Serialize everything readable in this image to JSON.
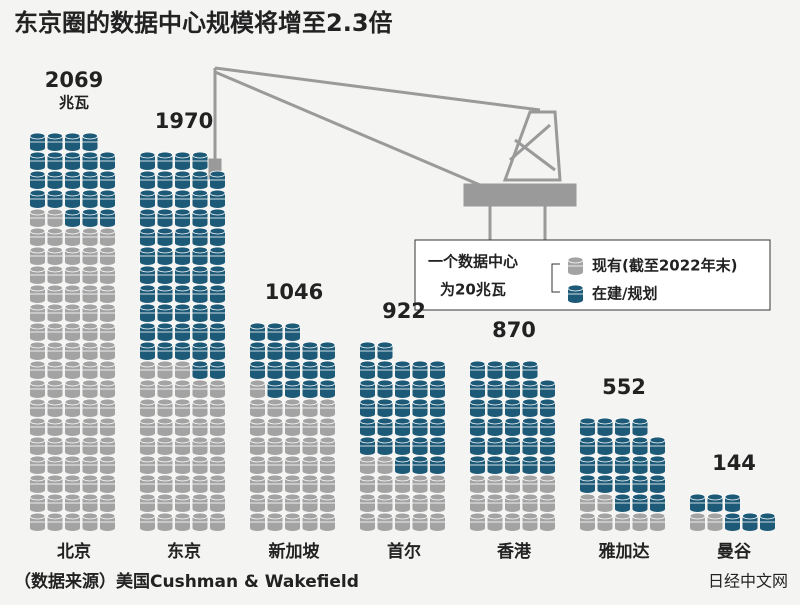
{
  "chart_data": {
    "type": "pictograph",
    "title": "东京圈的数据中心规模将增至2.3倍",
    "categories": [
      "北京",
      "东京",
      "新加坡",
      "首尔",
      "香港",
      "雅加达",
      "曼谷"
    ],
    "totals": [
      2069,
      1970,
      1046,
      922,
      870,
      552,
      144
    ],
    "unit": "兆瓦",
    "icon_value": 20,
    "series": [
      {
        "name": "现有(截至2022年末)",
        "color": "#a3a3a3",
        "values": [
          1629,
          860,
          716,
          322,
          300,
          127,
          40
        ]
      },
      {
        "name": "在建/规划",
        "color": "#1d5a78",
        "values": [
          440,
          1110,
          330,
          600,
          570,
          425,
          104
        ]
      }
    ],
    "legend_note": [
      "一个数据中心",
      "为20兆瓦"
    ],
    "source": "（数据来源）美国Cushman & Wakefield",
    "logo": "日经中文网"
  }
}
